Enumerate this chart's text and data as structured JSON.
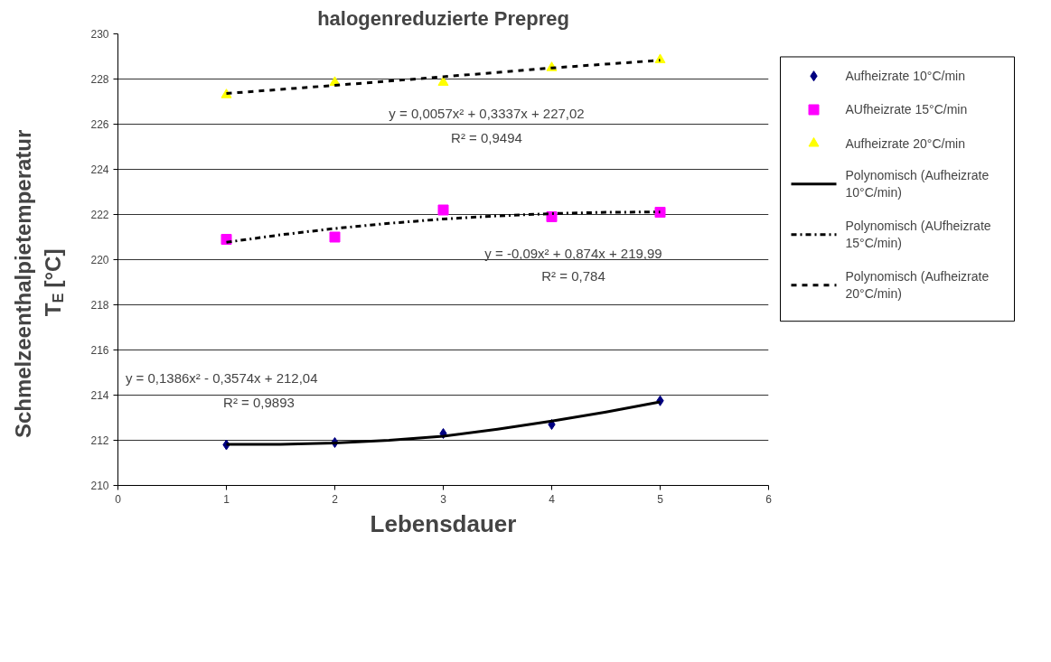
{
  "chart_data": {
    "type": "scatter",
    "title": "halogenreduzierte Prepreg",
    "xlabel": "Lebensdauer",
    "ylabel": "Schmelzeenthalpietemperatur T$_{E}$ [°C]",
    "xlim": [
      0,
      6
    ],
    "xticks": [
      0,
      1,
      2,
      3,
      4,
      5,
      6
    ],
    "ylim": [
      210,
      230
    ],
    "yticks": [
      210,
      212,
      214,
      216,
      218,
      220,
      222,
      224,
      226,
      228,
      230
    ],
    "grid": "y",
    "legend": "right",
    "series": [
      {
        "name": "Aufheizrate 10°C/min",
        "marker": "diamond",
        "color": "#000080",
        "x": [
          1,
          2,
          3,
          4,
          5
        ],
        "values": [
          211.8,
          211.9,
          212.3,
          212.7,
          213.75
        ]
      },
      {
        "name": "AUfheizrate 15°C/min",
        "marker": "square",
        "color": "#ff00ff",
        "x": [
          1,
          2,
          3,
          4,
          5
        ],
        "values": [
          220.9,
          221.0,
          222.2,
          221.9,
          222.1
        ]
      },
      {
        "name": "Aufheizrate 20°C/min",
        "marker": "triangle",
        "color": "#ffff00",
        "x": [
          1,
          2,
          3,
          4,
          5
        ],
        "values": [
          227.3,
          227.85,
          227.85,
          228.5,
          228.85
        ]
      },
      {
        "name": "Polynomisch (Aufheizrate 10°C/min)",
        "type": "line",
        "line_style": "solid",
        "color": "#000000",
        "x": [
          1,
          1.5,
          2,
          2.5,
          3,
          3.5,
          4,
          4.5,
          5
        ],
        "values": [
          211.82,
          211.82,
          211.88,
          212.0,
          212.18,
          212.49,
          212.85,
          213.25,
          213.7
        ]
      },
      {
        "name": "Polynomisch (AUfheizrate 15°C/min)",
        "type": "line",
        "line_style": "dashdot",
        "color": "#000000",
        "x": [
          1,
          1.5,
          2,
          2.5,
          3,
          3.5,
          4,
          4.5,
          5
        ],
        "values": [
          220.77,
          221.1,
          221.38,
          221.61,
          221.8,
          221.94,
          222.04,
          222.1,
          222.11
        ]
      },
      {
        "name": "Polynomisch (Aufheizrate 20°C/min)",
        "type": "line",
        "line_style": "dashed",
        "color": "#000000",
        "x": [
          1,
          2,
          3,
          4,
          5
        ],
        "values": [
          227.36,
          227.72,
          228.1,
          228.49,
          228.83
        ]
      }
    ],
    "annotations": [
      "y = 0,0057x² + 0,3337x + 227,02",
      "R² = 0,9494",
      "y = -0,09x² + 0,874x + 219,99",
      "R² = 0,784",
      "y = 0,1386x² - 0,3574x + 212,04",
      "R² = 0,9893"
    ]
  }
}
